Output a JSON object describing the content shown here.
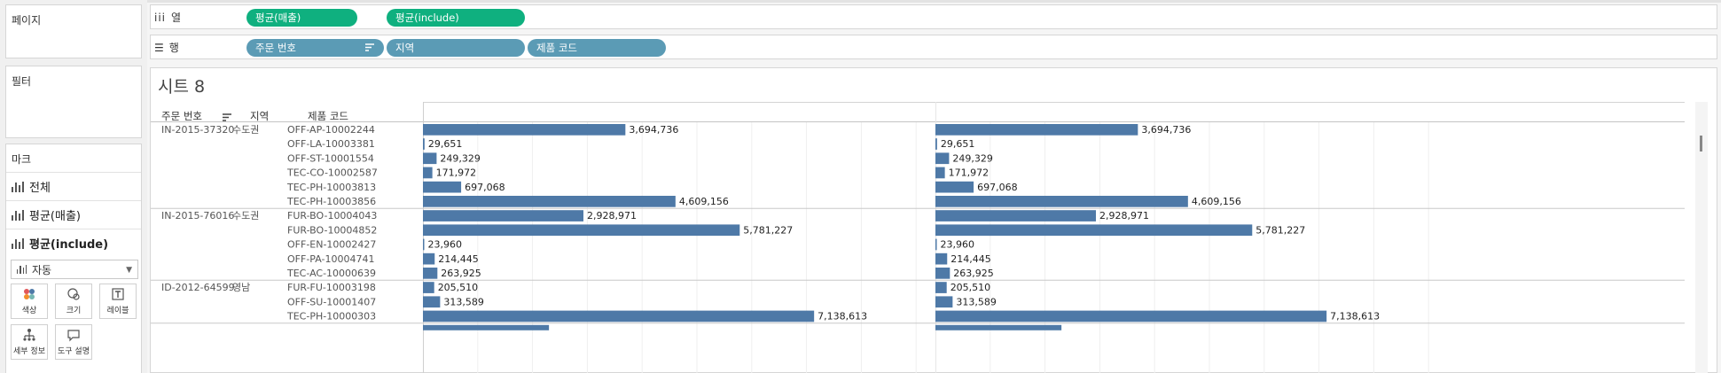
{
  "left_panel": {
    "pages_label": "페이지",
    "filters_label": "필터",
    "marks_label": "마크",
    "marks_rows": [
      "전체",
      "평균(매출)",
      "평균(include)"
    ],
    "mark_type": "자동",
    "mark_buttons": [
      "색상",
      "크기",
      "레이블",
      "세부 정보",
      "도구 설명"
    ]
  },
  "shelves": {
    "columns_label": "열",
    "rows_label": "행",
    "column_pills": [
      "평균(매출)",
      "평균(include)"
    ],
    "row_pills": [
      "주문 번호",
      "지역",
      "제품 코드"
    ]
  },
  "sheet": {
    "title": "시트 8",
    "headers": [
      "주문 번호",
      "지역",
      "제품 코드"
    ]
  },
  "colors": {
    "bar": "#4e79a7",
    "pill_measure": "#0fb07f",
    "pill_dimension": "#5b9bb5"
  },
  "chart_data": {
    "type": "bar",
    "orientation": "horizontal",
    "panels": [
      "평균(매출)",
      "평균(include)"
    ],
    "groups": [
      {
        "order": "IN-2015-37320",
        "region": "수도권",
        "rows": [
          {
            "product": "OFF-AP-10002244",
            "value": 3694736,
            "label": "3,694,736"
          },
          {
            "product": "OFF-LA-10003381",
            "value": 29651,
            "label": "29,651"
          },
          {
            "product": "OFF-ST-10001554",
            "value": 249329,
            "label": "249,329"
          },
          {
            "product": "TEC-CO-10002587",
            "value": 171972,
            "label": "171,972"
          },
          {
            "product": "TEC-PH-10003813",
            "value": 697068,
            "label": "697,068"
          },
          {
            "product": "TEC-PH-10003856",
            "value": 4609156,
            "label": "4,609,156"
          }
        ]
      },
      {
        "order": "IN-2015-76016",
        "region": "수도권",
        "rows": [
          {
            "product": "FUR-BO-10004043",
            "value": 2928971,
            "label": "2,928,971"
          },
          {
            "product": "FUR-BO-10004852",
            "value": 5781227,
            "label": "5,781,227"
          },
          {
            "product": "OFF-EN-10002427",
            "value": 23960,
            "label": "23,960"
          },
          {
            "product": "OFF-PA-10004741",
            "value": 214445,
            "label": "214,445"
          },
          {
            "product": "TEC-AC-10000639",
            "value": 263925,
            "label": "263,925"
          }
        ]
      },
      {
        "order": "ID-2012-64599",
        "region": "영남",
        "rows": [
          {
            "product": "FUR-FU-10003198",
            "value": 205510,
            "label": "205,510"
          },
          {
            "product": "OFF-SU-10001407",
            "value": 313589,
            "label": "313,589"
          },
          {
            "product": "TEC-PH-10000303",
            "value": 7138613,
            "label": "7,138,613"
          }
        ]
      }
    ],
    "partial_next_row_values": [
      2300000,
      2300000
    ],
    "xlim": [
      0,
      10000000
    ],
    "grid": true
  }
}
